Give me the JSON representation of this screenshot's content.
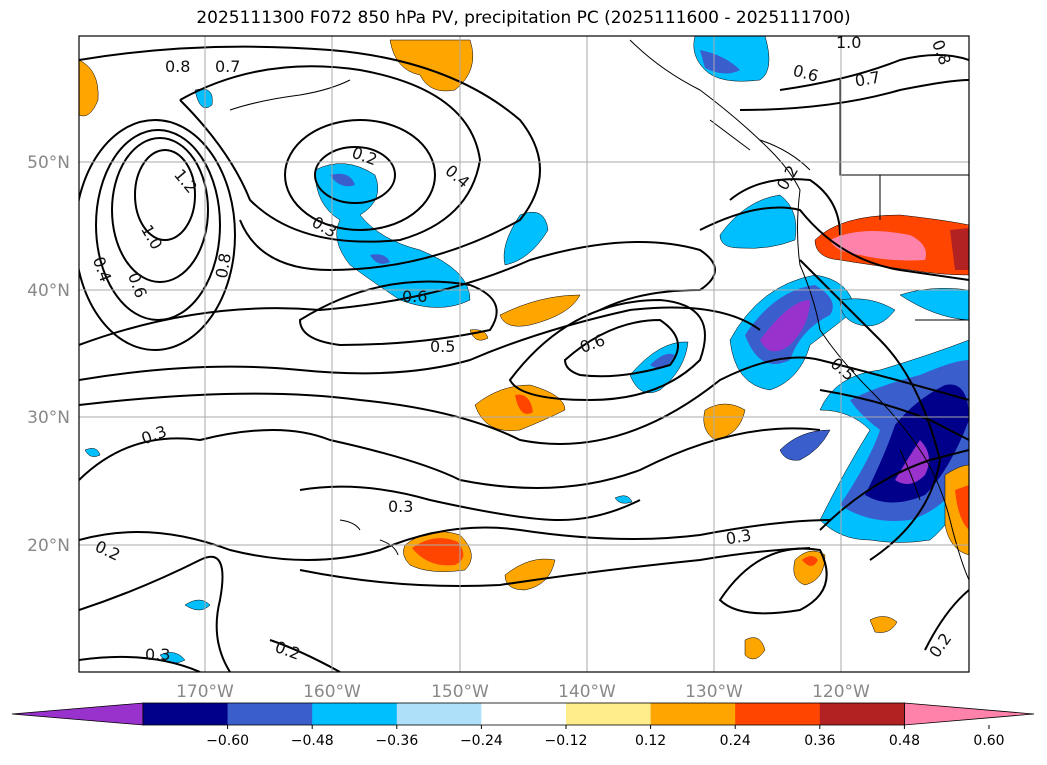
{
  "title": "2025111300 F072 850 hPa PV, precipitation PC (2025111600 - 2025111700)",
  "lat_labels": [
    "50°N",
    "40°N",
    "30°N",
    "20°N"
  ],
  "lon_labels": [
    "170°W",
    "160°W",
    "150°W",
    "140°W",
    "130°W",
    "120°W"
  ],
  "contour_labels": [
    "0.8",
    "0.7",
    "1.2",
    "1.0",
    "0.4",
    "0.6",
    "0.8",
    "0.2",
    "0.3",
    "0.4",
    "0.6",
    "0.5",
    "0.6",
    "0.3",
    "0.2",
    "0.3",
    "0.3",
    "0.2",
    "0.3",
    "0.2",
    "0.6",
    "0.7",
    "1.0",
    "0.8",
    "0.5",
    "0.2"
  ],
  "colorbar": {
    "colors": [
      "#9932CC",
      "#00008B",
      "#3A5FCD",
      "#00BFFF",
      "#AEE1F9",
      "#FFFFFF",
      "#FFEC8B",
      "#FFA500",
      "#FF4500",
      "#B22222",
      "#FF82AB"
    ],
    "ticks": [
      "−0.60",
      "−0.48",
      "−0.36",
      "−0.24",
      "−0.12",
      "0.12",
      "0.24",
      "0.36",
      "0.48",
      "0.60"
    ]
  }
}
